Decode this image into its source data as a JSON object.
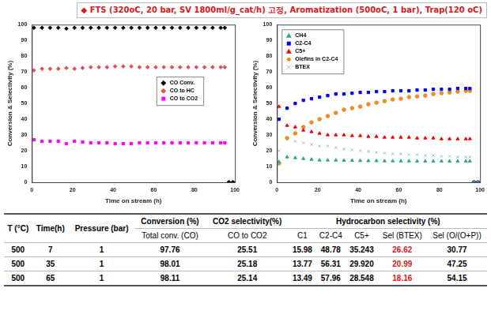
{
  "header": {
    "title": "◆ FTS (320oC, 20 bar, SV 1800ml/g_cat/h) 고정, Aromatization (500oC, 1 bar), Trap(120 oC)"
  },
  "chart_data": [
    {
      "type": "scatter",
      "x_label": "Time on stream (h)",
      "y_label": "Conversion & Selectivity (%)",
      "xlim": [
        0,
        100
      ],
      "xticks": [
        0,
        20,
        40,
        60,
        80,
        100
      ],
      "ylim": [
        0,
        100
      ],
      "yticks": [
        0,
        10,
        20,
        30,
        40,
        50,
        60,
        70,
        80,
        90,
        100
      ],
      "grid": false,
      "legend": "center right",
      "x": [
        1,
        5,
        9,
        13,
        17,
        21,
        25,
        29,
        33,
        37,
        41,
        45,
        49,
        53,
        57,
        61,
        65,
        69,
        73,
        77,
        81,
        85,
        89,
        93,
        95,
        97,
        99
      ],
      "series": [
        {
          "name": "CO Conv.",
          "color": "#000000",
          "marker": "diamond",
          "values": [
            98,
            98,
            98,
            98,
            97.5,
            98,
            98,
            98,
            98,
            98,
            98,
            98,
            98,
            98,
            98,
            98,
            98,
            98,
            98,
            98,
            98,
            98,
            98,
            98,
            98,
            0,
            0
          ]
        },
        {
          "name": "CO to HC",
          "color": "#e0504a",
          "marker": "diamond",
          "values": [
            71,
            72,
            72,
            72,
            72.5,
            72,
            72.5,
            73,
            73,
            73,
            73.5,
            73.5,
            73.5,
            73,
            73,
            73,
            73,
            73,
            73,
            73,
            73,
            73,
            73,
            73,
            73,
            0,
            0
          ]
        },
        {
          "name": "CO to CO2",
          "color": "#ff00ff",
          "marker": "square",
          "values": [
            27,
            26,
            26,
            26,
            24.5,
            26,
            25.5,
            25,
            25,
            25,
            24.5,
            24.5,
            24.5,
            25,
            25,
            25,
            25,
            25,
            25,
            25,
            25,
            25,
            25,
            25,
            25,
            0,
            0
          ]
        }
      ]
    },
    {
      "type": "scatter",
      "x_label": "Time on stream (h)",
      "y_label": "Conversion & Selectivity (%)",
      "xlim": [
        0,
        100
      ],
      "xticks": [
        0,
        20,
        40,
        60,
        80,
        100
      ],
      "ylim": [
        0,
        100
      ],
      "yticks": [
        0,
        10,
        20,
        30,
        40,
        50,
        60,
        70,
        80,
        90,
        100
      ],
      "grid": false,
      "legend": "upper left",
      "x": [
        1,
        5,
        9,
        13,
        17,
        21,
        25,
        29,
        33,
        37,
        41,
        45,
        49,
        53,
        57,
        61,
        65,
        69,
        73,
        77,
        81,
        85,
        89,
        93,
        95,
        97,
        99
      ],
      "series": [
        {
          "name": "CH4",
          "color": "#2eaa7a",
          "marker": "triangle",
          "values": [
            13,
            16,
            15.5,
            15,
            14.5,
            14,
            14,
            14,
            13.8,
            13.8,
            13.7,
            13.6,
            13.6,
            13.5,
            13.5,
            13.5,
            13.5,
            13.4,
            13.4,
            13.4,
            13.4,
            13.4,
            13.4,
            13.4,
            13.4,
            0,
            0
          ]
        },
        {
          "name": "C2-C4",
          "color": "#0000ff",
          "marker": "square",
          "values": [
            40,
            47,
            50,
            52,
            53,
            54,
            55,
            56,
            56,
            56.5,
            57,
            57,
            57.5,
            57.5,
            58,
            58,
            58,
            58.5,
            58.5,
            59,
            59,
            59,
            59.5,
            59.5,
            59.5,
            0,
            0
          ]
        },
        {
          "name": "C5+",
          "color": "#ff0000",
          "marker": "triangle",
          "values": [
            48,
            36,
            35,
            33,
            32,
            31,
            30,
            30,
            30,
            29.5,
            29.5,
            29,
            29,
            28.5,
            28.5,
            28.5,
            28.5,
            28,
            28,
            28,
            27.5,
            27.5,
            27.5,
            27.5,
            27.5,
            0,
            0
          ]
        },
        {
          "name": "Olefins in C2-C4",
          "color": "#f08a24",
          "marker": "circle",
          "values": [
            12,
            28,
            31,
            35,
            38,
            40,
            42,
            44,
            46,
            47,
            48,
            49.5,
            50.5,
            51.5,
            52.5,
            53,
            54,
            54.5,
            55,
            56,
            56.5,
            57,
            57.5,
            58,
            58,
            0,
            0
          ]
        },
        {
          "name": "BTEX",
          "color": "#8fbfe6",
          "marker": "x",
          "values": [
            20,
            27,
            26,
            25,
            24,
            23,
            23,
            22,
            21,
            20.5,
            20,
            19.5,
            19,
            18.5,
            18,
            18,
            17.5,
            17.5,
            17,
            17,
            16.5,
            16.5,
            16,
            16,
            16,
            0,
            0
          ]
        }
      ]
    }
  ],
  "table": {
    "columns_top": [
      "T (°C)",
      "Time(h)",
      "Pressure (bar)",
      "Conversion (%)",
      "CO2 selectivity(%)",
      "Hydrocarbon selectivity (%)"
    ],
    "columns_sub": [
      "Total conv. (CO)",
      "CO to CO2",
      "C1",
      "C2-C4",
      "C5+",
      "Sel (BTEX)",
      "Sel (O/(O+P))"
    ],
    "rows": [
      [
        "500",
        "7",
        "1",
        "97.76",
        "25.51",
        "15.98",
        "48.78",
        "35.243",
        "26.62",
        "30.77"
      ],
      [
        "500",
        "35",
        "1",
        "98.01",
        "25.18",
        "13.77",
        "56.31",
        "29.920",
        "20.99",
        "47.25"
      ],
      [
        "500",
        "65",
        "1",
        "98.11",
        "25.14",
        "13.49",
        "57.96",
        "28.548",
        "18.16",
        "54.15"
      ]
    ]
  }
}
